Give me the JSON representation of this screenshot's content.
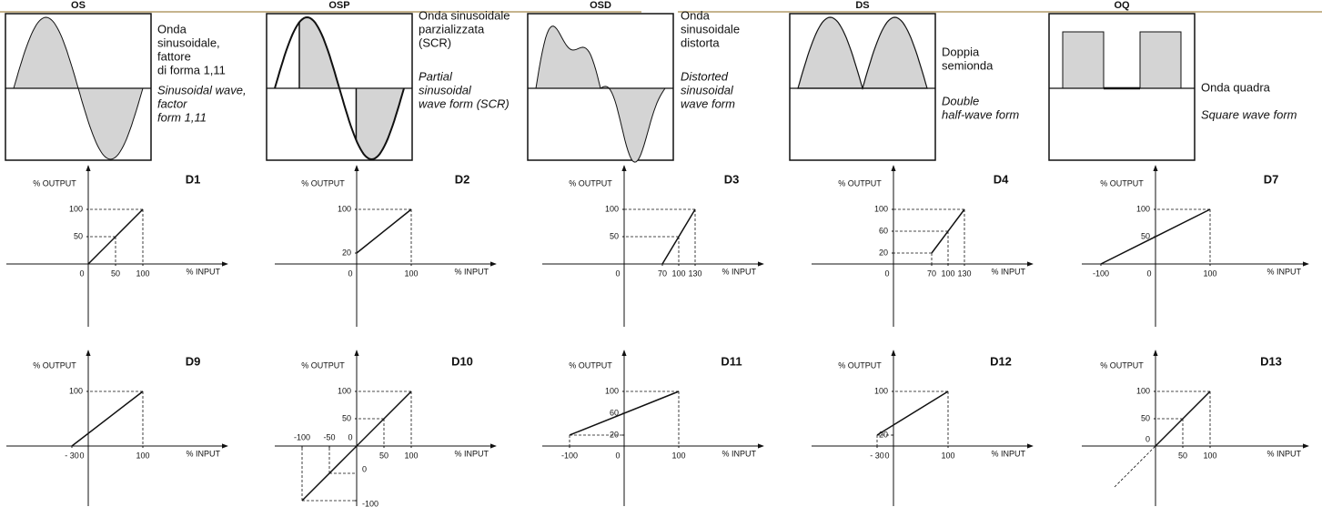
{
  "panels": [
    {
      "header": "OS",
      "italian": [
        "Onda",
        "sinusoidale,",
        "fattore",
        "di forma 1,11"
      ],
      "english": [
        "Sinusoidal wave,",
        "factor",
        "form 1,11"
      ]
    },
    {
      "header": "OSP",
      "italian": [
        "Onda sinusoidale",
        "parzializzata",
        "(SCR)"
      ],
      "english": [
        "Partial",
        "sinusoidal",
        "wave form (SCR)"
      ]
    },
    {
      "header": "OSD",
      "italian": [
        "Onda",
        "sinusoidale",
        "distorta"
      ],
      "english": [
        "Distorted",
        "sinusoidal",
        "wave form"
      ]
    },
    {
      "header": "DS",
      "italian": [
        "Doppia",
        "semionda"
      ],
      "english": [
        "Double",
        "half-wave form"
      ]
    },
    {
      "header": "OQ",
      "italian": [
        "Onda quadra"
      ],
      "english": [
        "Square wave form"
      ]
    }
  ],
  "graphs": [
    {
      "title": "D1",
      "y_label": "% OUTPUT",
      "x_label": "% INPUT",
      "xlim": [
        -150,
        255
      ],
      "ylim": [
        -115,
        180
      ],
      "xticks": [
        0,
        50,
        100
      ],
      "yticks": [
        50,
        100
      ],
      "line": [
        [
          0,
          0
        ],
        [
          100,
          100
        ]
      ],
      "guides": [
        [
          50,
          50
        ],
        [
          100,
          100
        ]
      ]
    },
    {
      "title": "D2",
      "y_label": "% OUTPUT",
      "x_label": "% INPUT",
      "xlim": [
        -150,
        255
      ],
      "ylim": [
        -115,
        180
      ],
      "xticks": [
        0,
        100
      ],
      "yticks": [
        20,
        100
      ],
      "line": [
        [
          0,
          20
        ],
        [
          100,
          100
        ]
      ],
      "guides": [
        [
          100,
          100
        ]
      ]
    },
    {
      "title": "D3",
      "y_label": "% OUTPUT",
      "x_label": "% INPUT",
      "xlim": [
        -150,
        255
      ],
      "ylim": [
        -115,
        180
      ],
      "xticks": [
        0,
        70,
        100,
        130
      ],
      "yticks": [
        50,
        100
      ],
      "line": [
        [
          70,
          0
        ],
        [
          130,
          100
        ]
      ],
      "guides": [
        [
          100,
          50
        ],
        [
          130,
          100
        ]
      ]
    },
    {
      "title": "D4",
      "y_label": "% OUTPUT",
      "x_label": "% INPUT",
      "xlim": [
        -150,
        255
      ],
      "ylim": [
        -115,
        180
      ],
      "xticks": [
        0,
        70,
        100,
        130
      ],
      "yticks": [
        20,
        60,
        100
      ],
      "line": [
        [
          70,
          20
        ],
        [
          130,
          100
        ]
      ],
      "guides": [
        [
          70,
          20
        ],
        [
          100,
          60
        ],
        [
          130,
          100
        ]
      ]
    },
    {
      "title": "D7",
      "y_label": "% OUTPUT",
      "x_label": "% INPUT",
      "xlim": [
        -135,
        280
      ],
      "ylim": [
        -115,
        180
      ],
      "xticks": [
        -100,
        0,
        100
      ],
      "yticks": [
        50,
        100
      ],
      "line": [
        [
          -100,
          0
        ],
        [
          100,
          100
        ]
      ],
      "guides": [
        [
          100,
          100
        ]
      ]
    },
    {
      "title": "D9",
      "y_label": "% OUTPUT",
      "x_label": "% INPUT",
      "xlim": [
        -150,
        255
      ],
      "ylim": [
        -110,
        175
      ],
      "xticks": [
        {
          "value": -30,
          "label": "- 30"
        },
        0,
        100
      ],
      "yticks": [
        100
      ],
      "line": [
        [
          -30,
          0
        ],
        [
          100,
          100
        ]
      ],
      "guides": [
        [
          100,
          100
        ]
      ]
    },
    {
      "title": "D10",
      "y_label": "% OUTPUT",
      "x_label": "% INPUT",
      "xlim": [
        -150,
        255
      ],
      "ylim": [
        -110,
        175
      ],
      "xticks": [
        -100,
        -50,
        0,
        50,
        100
      ],
      "yticks": [
        -100,
        0,
        50,
        100
      ],
      "line": [
        [
          -100,
          -100
        ],
        [
          100,
          100
        ]
      ],
      "guides": [
        [
          -100,
          -100
        ],
        [
          -50,
          -50
        ],
        [
          50,
          50
        ],
        [
          100,
          100
        ]
      ]
    },
    {
      "title": "D11",
      "y_label": "% OUTPUT",
      "x_label": "% INPUT",
      "xlim": [
        -150,
        255
      ],
      "ylim": [
        -110,
        175
      ],
      "xticks": [
        -100,
        0,
        100
      ],
      "yticks": [
        20,
        60,
        100
      ],
      "line": [
        [
          -100,
          20
        ],
        [
          100,
          100
        ]
      ],
      "guides": [
        [
          -100,
          20
        ],
        [
          100,
          100
        ]
      ]
    },
    {
      "title": "D12",
      "y_label": "% OUTPUT",
      "x_label": "% INPUT",
      "xlim": [
        -150,
        255
      ],
      "ylim": [
        -110,
        175
      ],
      "xticks": [
        {
          "value": -30,
          "label": "- 30"
        },
        0,
        100
      ],
      "yticks": [
        20,
        100
      ],
      "line": [
        [
          -30,
          20
        ],
        [
          100,
          100
        ]
      ],
      "guides": [
        [
          -30,
          20
        ],
        [
          100,
          100
        ]
      ]
    },
    {
      "title": "D13",
      "y_label": "% OUTPUT",
      "x_label": "% INPUT",
      "xlim": [
        -135,
        280
      ],
      "ylim": [
        -110,
        175
      ],
      "xticks": [
        50,
        100
      ],
      "yticks": [
        0,
        50,
        100
      ],
      "line": [
        [
          0,
          0
        ],
        [
          100,
          100
        ]
      ],
      "dashed_line": [
        [
          -75,
          -75
        ],
        [
          0,
          0
        ]
      ],
      "guides": [
        [
          50,
          50
        ],
        [
          100,
          100
        ]
      ]
    }
  ]
}
